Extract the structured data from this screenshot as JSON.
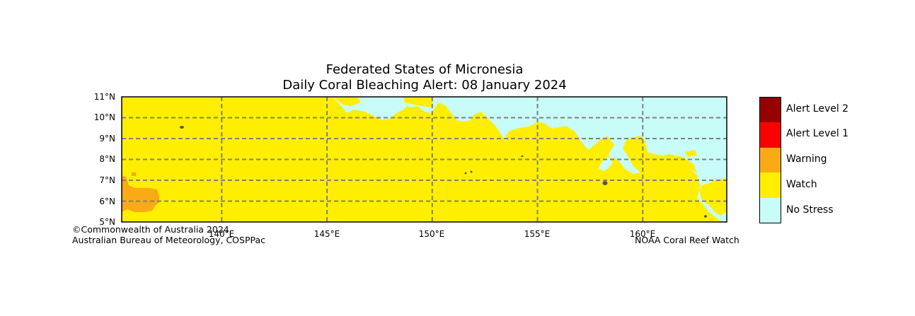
{
  "title": {
    "line1": "Federated States of Micronesia",
    "line2": "Daily Coral Bleaching Alert: 08 January 2024"
  },
  "map": {
    "lat_labels": [
      "11°N",
      "10°N",
      "9°N",
      "8°N",
      "7°N",
      "6°N",
      "5°N"
    ],
    "lat_values": [
      11,
      10,
      9,
      8,
      7,
      6,
      5
    ],
    "lon_labels": [
      "140°E",
      "145°E",
      "150°E",
      "155°E",
      "160°E"
    ],
    "lon_values": [
      140,
      145,
      150,
      155,
      160
    ],
    "lon_range": [
      135.25,
      163.99
    ],
    "lat_range": [
      5,
      11
    ],
    "colors": {
      "watch": "#ffee00",
      "no_stress": "#c8fcf8",
      "warning": "#faaa14",
      "land": "#555555",
      "grid": "#808080"
    }
  },
  "legend": {
    "items": [
      {
        "label": "Alert Level 2",
        "color": "#960000"
      },
      {
        "label": "Alert Level 1",
        "color": "#fa0000"
      },
      {
        "label": "Warning",
        "color": "#faaa14"
      },
      {
        "label": "Watch",
        "color": "#ffee00"
      },
      {
        "label": "No Stress",
        "color": "#c8fcf8"
      }
    ]
  },
  "credits": {
    "left_line1": "©Commonwealth of Australia 2024",
    "left_line2": "Australian Bureau of Meteorology, COSPPac",
    "right": "NOAA Coral Reef Watch"
  }
}
